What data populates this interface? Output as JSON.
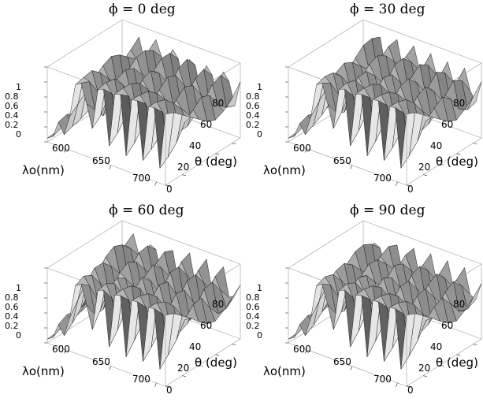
{
  "chart_data": [
    {
      "type": "surface",
      "title": "ϕ = 0 deg",
      "phi_deg": 0,
      "xlabel": "λo(nm)",
      "ylabel": "θ (deg)",
      "zlabel": "",
      "xlim": [
        580,
        710
      ],
      "ylim": [
        0,
        90
      ],
      "zlim": [
        0,
        1
      ],
      "x_ticks": [
        "600",
        "650",
        "700"
      ],
      "y_ticks": [
        "0",
        "20",
        "40",
        "60",
        "80"
      ],
      "z_ticks": [
        "0",
        "0.2",
        "0.4",
        "0.6",
        "0.8",
        "1"
      ],
      "z_values": [
        [
          0.05,
          0.1,
          0.32,
          0.18,
          0.45,
          0.9,
          0.95,
          0.7,
          0.4,
          0.95,
          0.98,
          0.25,
          0.97,
          0.99,
          0.2,
          0.98,
          0.99,
          0.22,
          0.97,
          0.98,
          0.2,
          0.95
        ],
        [
          0.06,
          0.14,
          0.35,
          0.22,
          0.55,
          0.93,
          0.9,
          0.55,
          0.5,
          0.97,
          0.85,
          0.35,
          0.98,
          0.9,
          0.3,
          0.97,
          0.88,
          0.3,
          0.96,
          0.85,
          0.28,
          0.9
        ],
        [
          0.08,
          0.18,
          0.3,
          0.25,
          0.65,
          0.95,
          0.7,
          0.4,
          0.7,
          0.95,
          0.55,
          0.5,
          0.97,
          0.6,
          0.45,
          0.95,
          0.55,
          0.4,
          0.92,
          0.55,
          0.4,
          0.8
        ],
        [
          0.1,
          0.2,
          0.25,
          0.3,
          0.75,
          0.85,
          0.5,
          0.5,
          0.85,
          0.8,
          0.45,
          0.7,
          0.9,
          0.45,
          0.65,
          0.85,
          0.45,
          0.6,
          0.8,
          0.45,
          0.6,
          0.7
        ],
        [
          0.12,
          0.22,
          0.22,
          0.38,
          0.85,
          0.7,
          0.4,
          0.65,
          0.9,
          0.6,
          0.5,
          0.85,
          0.75,
          0.45,
          0.8,
          0.7,
          0.45,
          0.75,
          0.65,
          0.45,
          0.7,
          0.6
        ],
        [
          0.15,
          0.25,
          0.25,
          0.45,
          0.9,
          0.55,
          0.4,
          0.8,
          0.85,
          0.45,
          0.65,
          0.9,
          0.55,
          0.55,
          0.9,
          0.55,
          0.55,
          0.85,
          0.5,
          0.55,
          0.8,
          0.5
        ],
        [
          0.18,
          0.28,
          0.3,
          0.55,
          0.85,
          0.45,
          0.5,
          0.9,
          0.7,
          0.45,
          0.8,
          0.8,
          0.45,
          0.7,
          0.85,
          0.45,
          0.65,
          0.8,
          0.45,
          0.65,
          0.75,
          0.45
        ],
        [
          0.2,
          0.3,
          0.35,
          0.65,
          0.75,
          0.4,
          0.65,
          0.92,
          0.55,
          0.55,
          0.9,
          0.6,
          0.5,
          0.85,
          0.65,
          0.5,
          0.8,
          0.6,
          0.5,
          0.8,
          0.55,
          0.5
        ],
        [
          0.22,
          0.32,
          0.4,
          0.75,
          0.65,
          0.45,
          0.8,
          0.85,
          0.45,
          0.7,
          0.9,
          0.45,
          0.65,
          0.9,
          0.45,
          0.65,
          0.85,
          0.45,
          0.65,
          0.85,
          0.45,
          0.6
        ],
        [
          0.25,
          0.35,
          0.45,
          0.85,
          0.55,
          0.55,
          0.9,
          0.7,
          0.45,
          0.85,
          0.75,
          0.4,
          0.8,
          0.75,
          0.4,
          0.8,
          0.7,
          0.4,
          0.8,
          0.7,
          0.4,
          0.75
        ]
      ]
    },
    {
      "type": "surface",
      "title": "ϕ = 30 deg",
      "phi_deg": 30,
      "xlabel": "λo(nm)",
      "ylabel": "θ (deg)",
      "zlabel": "",
      "xlim": [
        580,
        710
      ],
      "ylim": [
        0,
        90
      ],
      "zlim": [
        0,
        1
      ],
      "x_ticks": [
        "600",
        "650",
        "700"
      ],
      "y_ticks": [
        "0",
        "20",
        "40",
        "60",
        "80"
      ],
      "z_ticks": [
        "0",
        "0.2",
        "0.4",
        "0.6",
        "0.8",
        "1"
      ],
      "z_values": [
        [
          0.05,
          0.1,
          0.3,
          0.18,
          0.45,
          0.9,
          0.95,
          0.7,
          0.4,
          0.95,
          0.98,
          0.25,
          0.97,
          0.99,
          0.2,
          0.98,
          0.99,
          0.22,
          0.97,
          0.98,
          0.2,
          0.95
        ],
        [
          0.06,
          0.15,
          0.34,
          0.24,
          0.58,
          0.94,
          0.88,
          0.52,
          0.55,
          0.97,
          0.82,
          0.38,
          0.98,
          0.88,
          0.32,
          0.97,
          0.86,
          0.32,
          0.96,
          0.84,
          0.3,
          0.9
        ],
        [
          0.08,
          0.2,
          0.3,
          0.3,
          0.7,
          0.92,
          0.65,
          0.45,
          0.75,
          0.93,
          0.52,
          0.55,
          0.96,
          0.58,
          0.48,
          0.94,
          0.55,
          0.45,
          0.92,
          0.55,
          0.42,
          0.8
        ],
        [
          0.1,
          0.22,
          0.28,
          0.4,
          0.82,
          0.8,
          0.48,
          0.58,
          0.88,
          0.75,
          0.45,
          0.75,
          0.88,
          0.45,
          0.7,
          0.84,
          0.45,
          0.65,
          0.8,
          0.45,
          0.62,
          0.7
        ],
        [
          0.13,
          0.25,
          0.28,
          0.52,
          0.88,
          0.62,
          0.42,
          0.75,
          0.88,
          0.55,
          0.55,
          0.88,
          0.7,
          0.48,
          0.85,
          0.68,
          0.48,
          0.8,
          0.62,
          0.48,
          0.72,
          0.6
        ],
        [
          0.16,
          0.28,
          0.32,
          0.65,
          0.82,
          0.48,
          0.48,
          0.88,
          0.75,
          0.45,
          0.72,
          0.85,
          0.5,
          0.62,
          0.88,
          0.5,
          0.6,
          0.85,
          0.48,
          0.58,
          0.8,
          0.5
        ],
        [
          0.19,
          0.3,
          0.38,
          0.78,
          0.7,
          0.42,
          0.62,
          0.92,
          0.58,
          0.52,
          0.88,
          0.68,
          0.45,
          0.8,
          0.75,
          0.45,
          0.75,
          0.72,
          0.45,
          0.72,
          0.7,
          0.45
        ],
        [
          0.21,
          0.33,
          0.45,
          0.88,
          0.58,
          0.45,
          0.78,
          0.85,
          0.48,
          0.68,
          0.9,
          0.5,
          0.58,
          0.9,
          0.55,
          0.55,
          0.88,
          0.52,
          0.55,
          0.85,
          0.5,
          0.52
        ],
        [
          0.24,
          0.36,
          0.52,
          0.9,
          0.5,
          0.55,
          0.88,
          0.7,
          0.45,
          0.82,
          0.78,
          0.42,
          0.75,
          0.82,
          0.42,
          0.72,
          0.8,
          0.42,
          0.72,
          0.78,
          0.42,
          0.62
        ],
        [
          0.27,
          0.4,
          0.6,
          0.85,
          0.45,
          0.68,
          0.9,
          0.55,
          0.52,
          0.9,
          0.6,
          0.45,
          0.88,
          0.62,
          0.45,
          0.85,
          0.6,
          0.45,
          0.85,
          0.58,
          0.45,
          0.75
        ]
      ]
    },
    {
      "type": "surface",
      "title": "ϕ = 60 deg",
      "phi_deg": 60,
      "xlabel": "λo(nm)",
      "ylabel": "θ (deg)",
      "zlabel": "",
      "xlim": [
        580,
        710
      ],
      "ylim": [
        0,
        90
      ],
      "zlim": [
        0,
        1
      ],
      "x_ticks": [
        "600",
        "650",
        "700"
      ],
      "y_ticks": [
        "0",
        "20",
        "40",
        "60",
        "80"
      ],
      "z_ticks": [
        "0",
        "0.2",
        "0.4",
        "0.6",
        "0.8",
        "1"
      ],
      "z_values": [
        [
          0.05,
          0.1,
          0.3,
          0.18,
          0.45,
          0.9,
          0.95,
          0.7,
          0.4,
          0.95,
          0.98,
          0.25,
          0.97,
          0.99,
          0.2,
          0.98,
          0.99,
          0.22,
          0.97,
          0.98,
          0.2,
          0.95
        ],
        [
          0.06,
          0.16,
          0.36,
          0.28,
          0.62,
          0.96,
          0.86,
          0.5,
          0.6,
          0.97,
          0.8,
          0.4,
          0.98,
          0.86,
          0.35,
          0.97,
          0.85,
          0.34,
          0.96,
          0.84,
          0.32,
          0.9
        ],
        [
          0.08,
          0.22,
          0.34,
          0.4,
          0.78,
          0.9,
          0.6,
          0.5,
          0.8,
          0.9,
          0.5,
          0.6,
          0.95,
          0.56,
          0.52,
          0.93,
          0.55,
          0.48,
          0.9,
          0.55,
          0.45,
          0.8
        ],
        [
          0.1,
          0.25,
          0.35,
          0.55,
          0.9,
          0.72,
          0.45,
          0.68,
          0.88,
          0.68,
          0.48,
          0.8,
          0.85,
          0.45,
          0.75,
          0.82,
          0.45,
          0.7,
          0.78,
          0.45,
          0.65,
          0.7
        ],
        [
          0.13,
          0.28,
          0.4,
          0.72,
          0.9,
          0.55,
          0.45,
          0.85,
          0.8,
          0.5,
          0.62,
          0.9,
          0.62,
          0.52,
          0.88,
          0.62,
          0.52,
          0.85,
          0.58,
          0.5,
          0.78,
          0.58
        ],
        [
          0.16,
          0.32,
          0.48,
          0.88,
          0.78,
          0.45,
          0.58,
          0.92,
          0.62,
          0.48,
          0.82,
          0.78,
          0.48,
          0.72,
          0.85,
          0.48,
          0.7,
          0.82,
          0.45,
          0.65,
          0.8,
          0.48
        ],
        [
          0.19,
          0.35,
          0.58,
          0.95,
          0.62,
          0.45,
          0.75,
          0.85,
          0.5,
          0.65,
          0.9,
          0.55,
          0.52,
          0.88,
          0.62,
          0.5,
          0.85,
          0.6,
          0.5,
          0.82,
          0.6,
          0.45
        ],
        [
          0.22,
          0.4,
          0.7,
          0.9,
          0.5,
          0.55,
          0.88,
          0.68,
          0.45,
          0.82,
          0.78,
          0.45,
          0.7,
          0.88,
          0.45,
          0.68,
          0.86,
          0.45,
          0.68,
          0.84,
          0.45,
          0.52
        ],
        [
          0.25,
          0.45,
          0.8,
          0.78,
          0.45,
          0.7,
          0.9,
          0.52,
          0.55,
          0.9,
          0.58,
          0.48,
          0.85,
          0.7,
          0.45,
          0.82,
          0.68,
          0.45,
          0.82,
          0.66,
          0.45,
          0.62
        ],
        [
          0.28,
          0.52,
          0.88,
          0.62,
          0.48,
          0.82,
          0.78,
          0.45,
          0.7,
          0.85,
          0.45,
          0.62,
          0.9,
          0.5,
          0.55,
          0.9,
          0.5,
          0.55,
          0.88,
          0.5,
          0.55,
          0.72
        ]
      ]
    },
    {
      "type": "surface",
      "title": "ϕ = 90 deg",
      "phi_deg": 90,
      "xlabel": "λo(nm)",
      "ylabel": "θ (deg)",
      "zlabel": "",
      "xlim": [
        580,
        710
      ],
      "ylim": [
        0,
        90
      ],
      "zlim": [
        0,
        1
      ],
      "x_ticks": [
        "600",
        "650",
        "700"
      ],
      "y_ticks": [
        "0",
        "20",
        "40",
        "60",
        "80"
      ],
      "z_ticks": [
        "0",
        "0.2",
        "0.4",
        "0.6",
        "0.8",
        "1"
      ],
      "z_values": [
        [
          0.05,
          0.1,
          0.3,
          0.18,
          0.45,
          0.9,
          0.95,
          0.7,
          0.4,
          0.95,
          0.98,
          0.25,
          0.97,
          0.99,
          0.2,
          0.98,
          0.99,
          0.22,
          0.97,
          0.98,
          0.2,
          0.95
        ],
        [
          0.06,
          0.15,
          0.35,
          0.25,
          0.6,
          0.95,
          0.87,
          0.51,
          0.58,
          0.97,
          0.81,
          0.39,
          0.98,
          0.87,
          0.34,
          0.97,
          0.85,
          0.33,
          0.96,
          0.84,
          0.31,
          0.9
        ],
        [
          0.08,
          0.21,
          0.32,
          0.35,
          0.74,
          0.91,
          0.62,
          0.48,
          0.78,
          0.91,
          0.51,
          0.58,
          0.95,
          0.57,
          0.5,
          0.93,
          0.55,
          0.46,
          0.91,
          0.55,
          0.44,
          0.8
        ],
        [
          0.1,
          0.24,
          0.32,
          0.48,
          0.86,
          0.76,
          0.46,
          0.64,
          0.88,
          0.72,
          0.46,
          0.78,
          0.86,
          0.45,
          0.72,
          0.83,
          0.45,
          0.68,
          0.79,
          0.45,
          0.64,
          0.7
        ],
        [
          0.13,
          0.27,
          0.35,
          0.62,
          0.89,
          0.58,
          0.44,
          0.8,
          0.84,
          0.52,
          0.58,
          0.89,
          0.66,
          0.5,
          0.86,
          0.65,
          0.5,
          0.82,
          0.6,
          0.49,
          0.75,
          0.59
        ],
        [
          0.16,
          0.3,
          0.4,
          0.78,
          0.8,
          0.46,
          0.53,
          0.9,
          0.68,
          0.46,
          0.77,
          0.82,
          0.49,
          0.67,
          0.86,
          0.49,
          0.65,
          0.84,
          0.46,
          0.62,
          0.8,
          0.49
        ],
        [
          0.19,
          0.33,
          0.48,
          0.88,
          0.66,
          0.44,
          0.68,
          0.88,
          0.54,
          0.58,
          0.89,
          0.62,
          0.48,
          0.84,
          0.68,
          0.48,
          0.8,
          0.66,
          0.48,
          0.78,
          0.65,
          0.45
        ],
        [
          0.22,
          0.37,
          0.58,
          0.9,
          0.54,
          0.5,
          0.83,
          0.76,
          0.46,
          0.75,
          0.84,
          0.48,
          0.64,
          0.89,
          0.5,
          0.62,
          0.87,
          0.48,
          0.62,
          0.85,
          0.48,
          0.52
        ],
        [
          0.25,
          0.41,
          0.68,
          0.84,
          0.48,
          0.62,
          0.89,
          0.61,
          0.5,
          0.86,
          0.68,
          0.45,
          0.8,
          0.76,
          0.44,
          0.77,
          0.74,
          0.44,
          0.77,
          0.72,
          0.44,
          0.62
        ],
        [
          0.28,
          0.46,
          0.76,
          0.72,
          0.46,
          0.75,
          0.84,
          0.5,
          0.61,
          0.88,
          0.52,
          0.54,
          0.89,
          0.56,
          0.5,
          0.88,
          0.55,
          0.5,
          0.87,
          0.54,
          0.5,
          0.74
        ]
      ]
    }
  ]
}
